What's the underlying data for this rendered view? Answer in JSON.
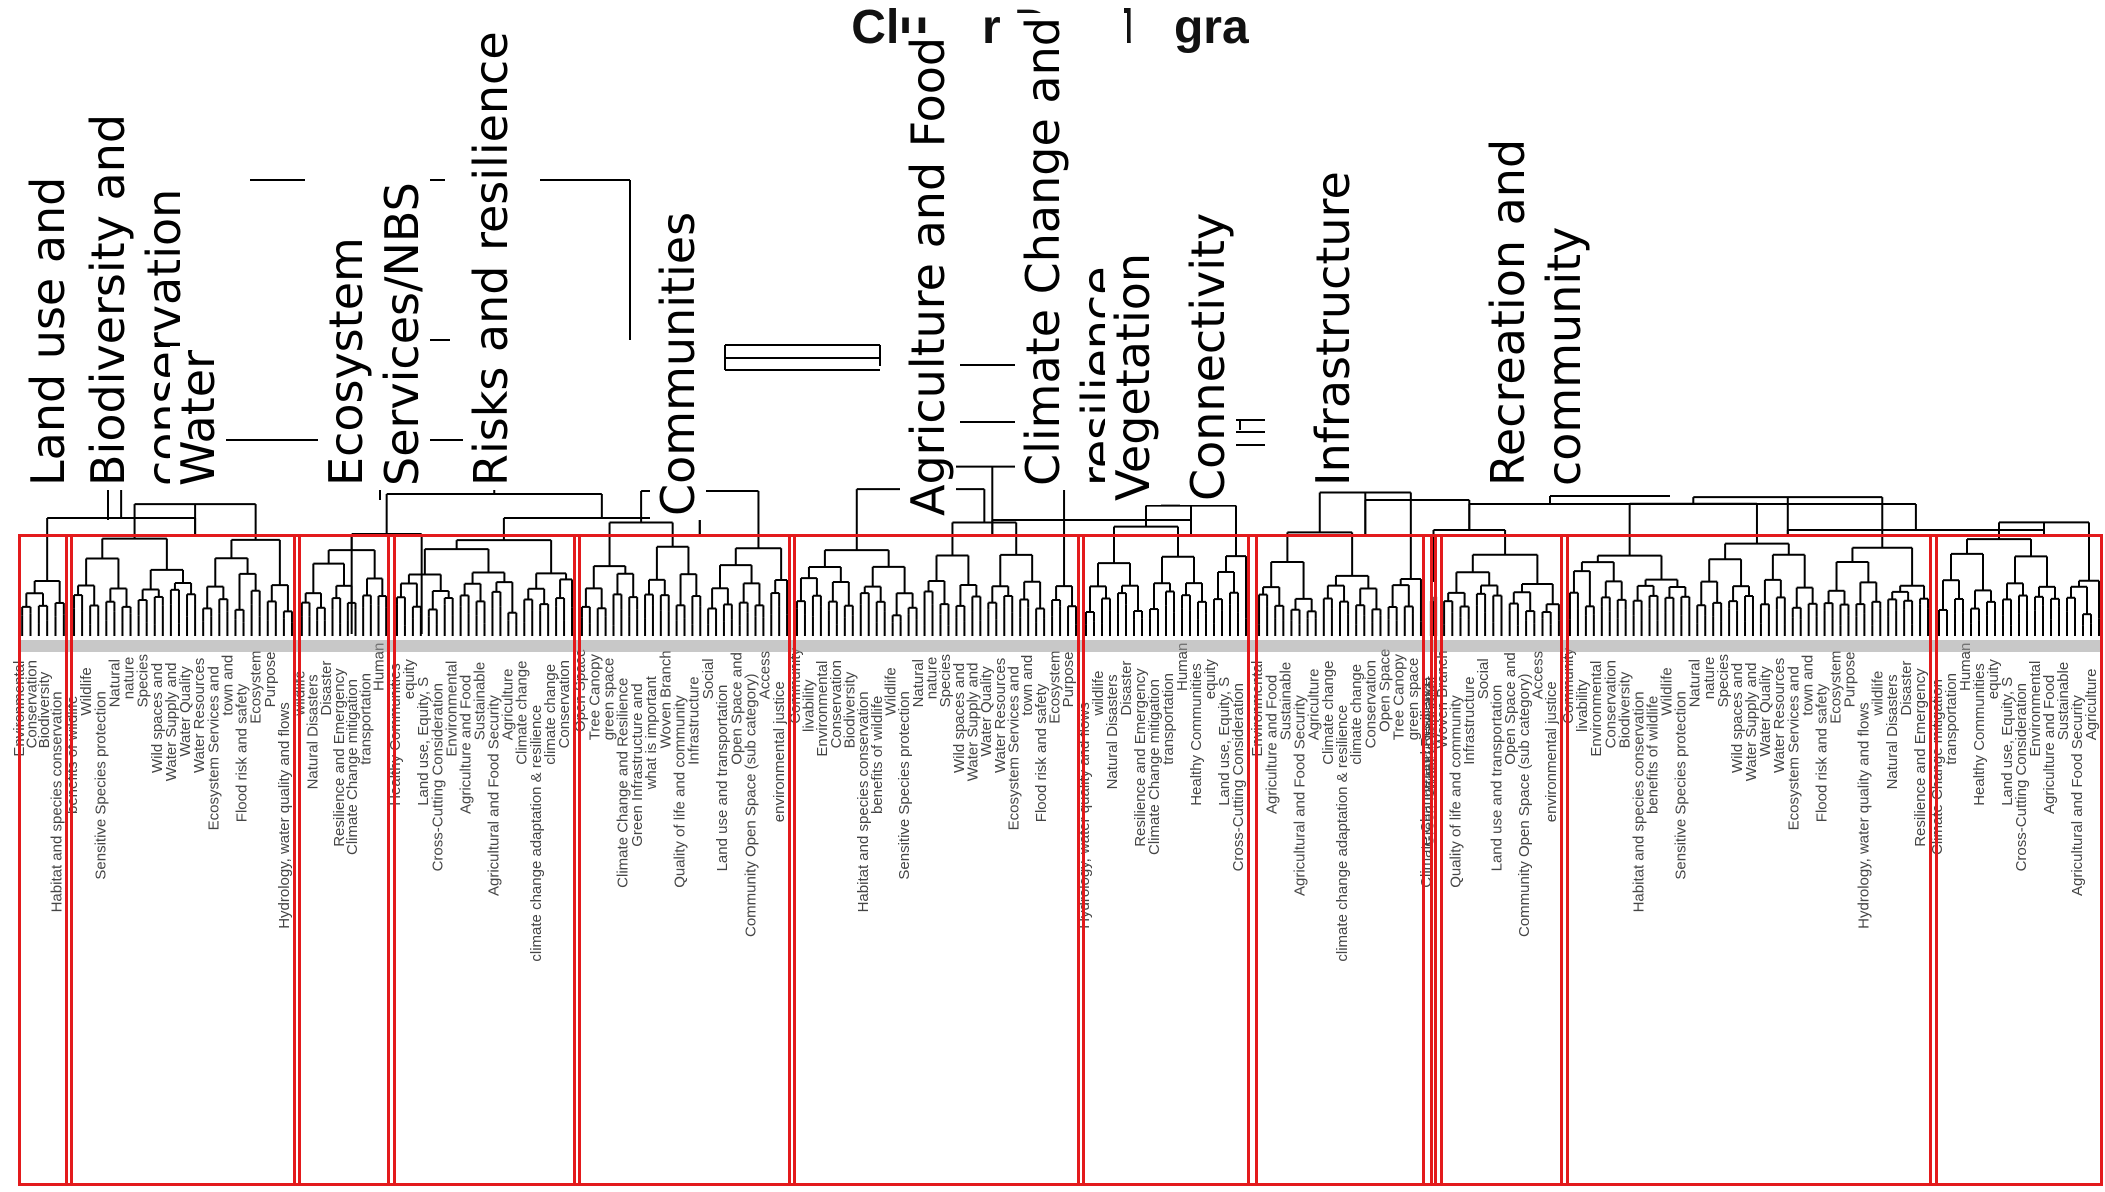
{
  "title": "Clu    r Dend   gra",
  "clusters": [
    {
      "label": "Land use and\nconservation"
    },
    {
      "label": "Biodiversity and\nconservation"
    },
    {
      "label": "Water"
    },
    {
      "label": "Ecosystem\nServices/NBS"
    },
    {
      "label": "Risks and resilience"
    },
    {
      "label": "Communities"
    },
    {
      "label": "Agriculture and Food"
    },
    {
      "label": "Climate Change and\nresilience"
    },
    {
      "label": "Vegetation"
    },
    {
      "label": "Connectivity"
    },
    {
      "label": "Infrastructure"
    },
    {
      "label": "Recreation and\ncommunity"
    }
  ],
  "leaf_labels": [
    "Environmental",
    "Conservation",
    "Biodiversity",
    "Habitat and species conservation",
    "benefits of wildlife",
    "Wildlife",
    "Sensitive Species protection",
    "Natural",
    "nature",
    "Species",
    "Wild spaces and",
    "Water Supply and",
    "Water Quality",
    "Water Resources",
    "Ecosystem Services and",
    "town and",
    "Flood risk and safety",
    "Ecosystem",
    "Purpose",
    "Hydrology, water quality and flows",
    "wildlife",
    "Natural Disasters",
    "Disaster",
    "Resilience and Emergency",
    "Climate Change mitigation",
    "transportation",
    "Human",
    "Healthy Communities",
    "equity",
    "Land use, Equity, S",
    "Cross-Cutting Consideration",
    "Environmental",
    "Agriculture and Food",
    "Sustainable",
    "Agricultural and Food Security",
    "Agriculture",
    "Climate change",
    "climate change adaptation & resilience",
    "climate change",
    "Conservation",
    "Open Space",
    "Tree Canopy",
    "green space",
    "Climate Change and Resilience",
    "Green Infrastructure and",
    "what is important",
    "Woven Branch",
    "Quality of life and community",
    "Infrastructure",
    "Social",
    "Land use and transportation",
    "Open Space and",
    "Community Open Space (sub category)",
    "Access",
    "environmental justice",
    "Community",
    "livability"
  ]
}
